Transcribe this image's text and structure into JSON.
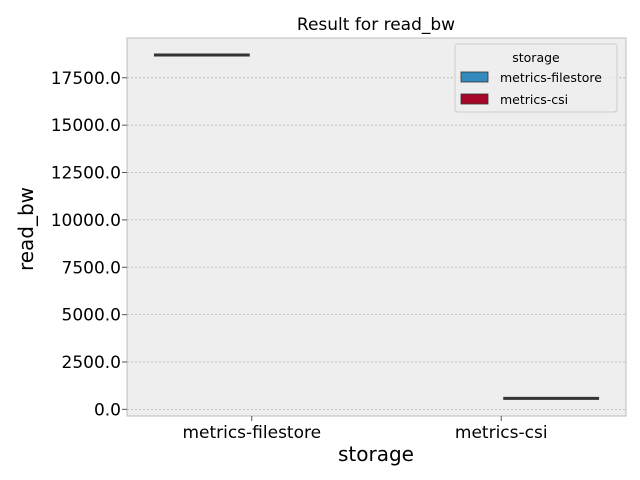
{
  "chart_data": {
    "type": "boxplot",
    "title": "Result for read_bw",
    "xlabel": "storage",
    "ylabel": "read_bw",
    "categories": [
      "metrics-filestore",
      "metrics-csi"
    ],
    "series": [
      {
        "name": "metrics-filestore",
        "color": "#348ABD",
        "values": [
          18700,
          null
        ]
      },
      {
        "name": "metrics-csi",
        "color": "#A60628",
        "values": [
          null,
          580
        ]
      }
    ],
    "y_ticks": [
      0,
      2500,
      5000,
      7500,
      10000,
      12500,
      15000,
      17500
    ],
    "y_tick_labels": [
      "0.0",
      "2500.0",
      "5000.0",
      "7500.0",
      "10000.0",
      "12500.0",
      "15000.0",
      "17500.0"
    ],
    "ylim": [
      -350,
      19600
    ],
    "grid": true,
    "legend": {
      "title": "storage",
      "placement": "top-right",
      "entries": [
        "metrics-filestore",
        "metrics-csi"
      ]
    },
    "colors": {
      "median_line": "#333333",
      "axes_bg": "#EEEEEE",
      "grid": "#b2b2b2",
      "frame": "#bcbcbc"
    }
  }
}
